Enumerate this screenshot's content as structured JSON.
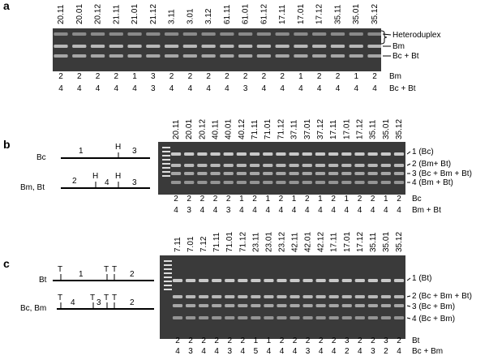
{
  "panels": [
    {
      "letter": "a",
      "lanes": [
        "20.11",
        "20.01",
        "20.12",
        "21.11",
        "21.01",
        "21.12",
        "3.11",
        "3.01",
        "3.12",
        "61.11",
        "61.01",
        "61.12",
        "17.11",
        "17.01",
        "17.12",
        "35.11",
        "35.01",
        "35.12"
      ],
      "band_labels": [
        "Heteroduplex",
        "Bm",
        "Bc + Bt"
      ],
      "rows": [
        {
          "label": "Bm",
          "values": [
            "2",
            "2",
            "2",
            "2",
            "1",
            "3",
            "2",
            "2",
            "2",
            "2",
            "2",
            "2",
            "2",
            "1",
            "2",
            "2",
            "1",
            "2"
          ]
        },
        {
          "label": "Bc + Bt",
          "values": [
            "4",
            "4",
            "4",
            "4",
            "4",
            "3",
            "4",
            "4",
            "4",
            "4",
            "3",
            "4",
            "4",
            "4",
            "4",
            "4",
            "4",
            "4"
          ]
        }
      ]
    },
    {
      "letter": "b",
      "lanes": [
        "20.11",
        "20.01",
        "20.12",
        "40.11",
        "40.01",
        "40.12",
        "71.11",
        "71.01",
        "71.12",
        "37.11",
        "37.01",
        "37.12",
        "17.11",
        "17.01",
        "17.12",
        "35.11",
        "35.01",
        "35.12"
      ],
      "band_labels": [
        "1 (Bc)",
        "2 (Bm+ Bt)",
        "3 (Bc + Bm + Bt)",
        "4 (Bm + Bt)"
      ],
      "rows": [
        {
          "label": "Bc",
          "values": [
            "2",
            "2",
            "2",
            "2",
            "2",
            "1",
            "2",
            "1",
            "2",
            "1",
            "2",
            "1",
            "2",
            "1",
            "2",
            "2",
            "1",
            "2"
          ]
        },
        {
          "label": "Bm + Bt",
          "values": [
            "4",
            "3",
            "4",
            "4",
            "3",
            "4",
            "4",
            "4",
            "4",
            "4",
            "4",
            "4",
            "4",
            "4",
            "4",
            "4",
            "4",
            "4"
          ]
        }
      ],
      "diagram": [
        "Bc",
        "1",
        "H",
        "3",
        "Bm, Bt",
        "2",
        "H",
        "4",
        "H",
        "3"
      ]
    },
    {
      "letter": "c",
      "lanes": [
        "7.11",
        "7.01",
        "7.12",
        "71.11",
        "71.01",
        "71.12",
        "23.11",
        "23.01",
        "23.12",
        "42.11",
        "42.01",
        "42.12",
        "17.11",
        "17.01",
        "17.12",
        "35.11",
        "35.01",
        "35.12"
      ],
      "band_labels": [
        "1 (Bt)",
        "2 (Bc + Bm + Bt)",
        "3 (Bc + Bm)",
        "4 (Bc + Bm)"
      ],
      "rows": [
        {
          "label": "Bt",
          "values": [
            "2",
            "2",
            "2",
            "2",
            "2",
            "2",
            "1",
            "1",
            "2",
            "2",
            "2",
            "2",
            "2",
            "3",
            "2",
            "2",
            "3",
            "2"
          ]
        },
        {
          "label": "Bc + Bm",
          "values": [
            "4",
            "3",
            "4",
            "4",
            "3",
            "4",
            "5",
            "4",
            "4",
            "4",
            "3",
            "4",
            "4",
            "2",
            "4",
            "3",
            "2",
            "4"
          ]
        }
      ],
      "diagram": [
        "Bt",
        "T",
        "1",
        "T",
        "T",
        "2",
        "Bc, Bm",
        "T",
        "4",
        "T",
        "3",
        "T",
        "T",
        "2"
      ]
    }
  ]
}
